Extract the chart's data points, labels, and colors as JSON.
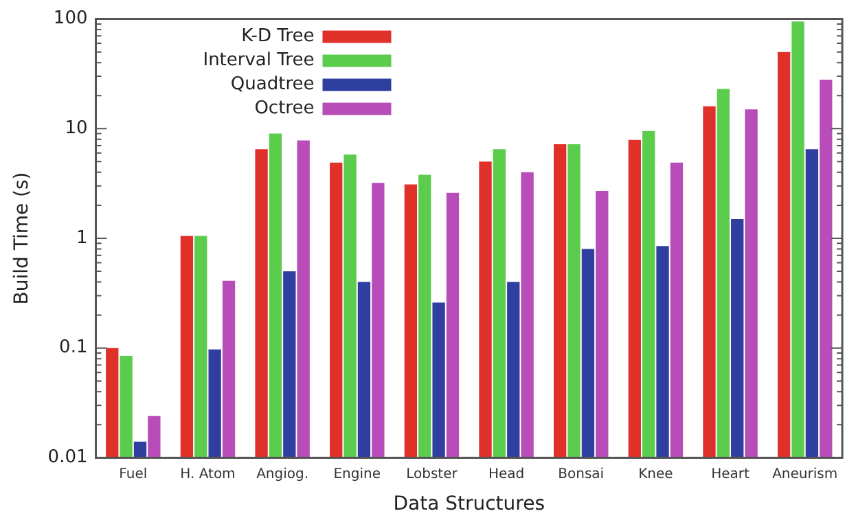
{
  "chart_data": {
    "type": "bar",
    "xlabel": "Data Structures",
    "ylabel": "Build Time (s)",
    "categories": [
      "Fuel",
      "H. Atom",
      "Angiog.",
      "Engine",
      "Lobster",
      "Head",
      "Bonsai",
      "Knee",
      "Heart",
      "Aneurism"
    ],
    "series": [
      {
        "name": "K-D Tree",
        "color": "#e0302a",
        "values": [
          0.1,
          1.05,
          6.5,
          4.9,
          3.1,
          5,
          7.2,
          7.9,
          16,
          50
        ]
      },
      {
        "name": "Interval Tree",
        "color": "#5ccc4c",
        "values": [
          0.085,
          1.05,
          9,
          5.8,
          3.8,
          6.5,
          7.2,
          9.5,
          23,
          95
        ]
      },
      {
        "name": "Quadtree",
        "color": "#2e3fa0",
        "values": [
          0.014,
          0.097,
          0.5,
          0.4,
          0.26,
          0.4,
          0.8,
          0.85,
          1.5,
          6.5
        ]
      },
      {
        "name": "Octree",
        "color": "#b84cb8",
        "values": [
          0.024,
          0.41,
          7.8,
          3.2,
          2.6,
          4,
          2.7,
          4.9,
          15,
          28
        ]
      }
    ],
    "log": "y",
    "ylim": [
      0.01,
      100
    ],
    "yticks": [
      0.01,
      0.1,
      1,
      10,
      100
    ],
    "grid": false,
    "legend": "top left"
  }
}
